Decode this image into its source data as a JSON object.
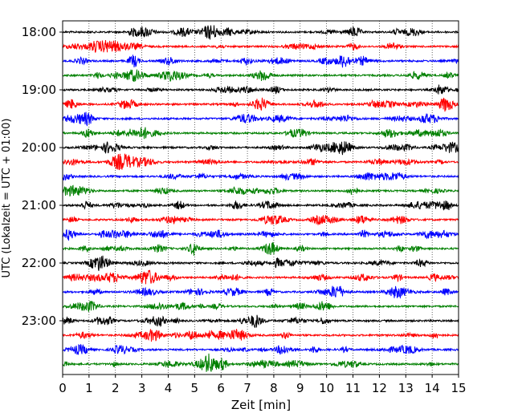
{
  "chart_data": {
    "type": "line",
    "title": "",
    "xlabel": "Zeit  [min]",
    "ylabel": "UTC (Lokalzeit = UTC + 01:00)",
    "xlim": [
      0,
      15
    ],
    "x_ticks": [
      "0",
      "1",
      "2",
      "3",
      "4",
      "5",
      "6",
      "7",
      "8",
      "9",
      "10",
      "11",
      "12",
      "13",
      "14",
      "15"
    ],
    "y_tick_labels": [
      "18:00",
      "19:00",
      "20:00",
      "21:00",
      "22:00",
      "23:00"
    ],
    "trace_start_times": [
      "18:00",
      "18:15",
      "18:30",
      "18:45",
      "19:00",
      "19:15",
      "19:30",
      "19:45",
      "20:00",
      "20:15",
      "20:30",
      "20:45",
      "21:00",
      "21:15",
      "21:30",
      "21:45",
      "22:00",
      "22:15",
      "22:30",
      "22:45",
      "23:00",
      "23:15",
      "23:30",
      "23:45"
    ],
    "trace_colors": [
      "#000000",
      "#ff0000",
      "#0000ff",
      "#008000"
    ],
    "grid": {
      "vertical": true,
      "style": "dotted"
    }
  }
}
